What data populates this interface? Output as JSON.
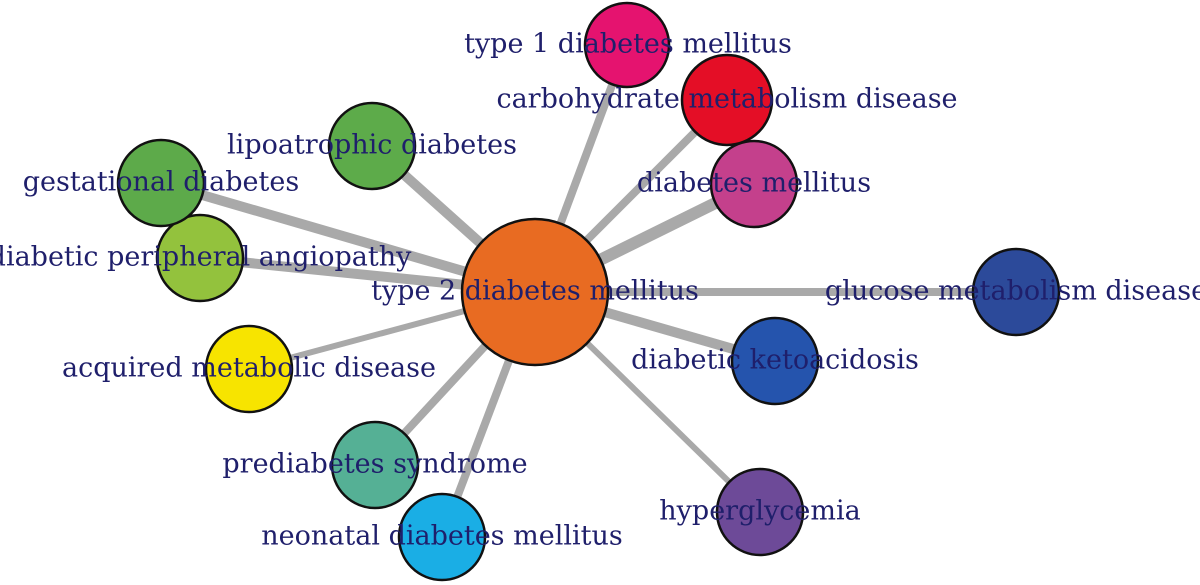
{
  "center": {
    "key": "t2dm",
    "label": "type 2 diabetes mellitus",
    "color": "#e86b22"
  },
  "nodes": [
    {
      "key": "t1dm",
      "label": "type 1 diabetes mellitus",
      "color": "#e5136f",
      "weight": 3
    },
    {
      "key": "carb",
      "label": "carbohydrate metabolism disease",
      "color": "#e40e26",
      "weight": 3
    },
    {
      "key": "dm",
      "label": "diabetes mellitus",
      "color": "#c4408c",
      "weight": 5
    },
    {
      "key": "glucose",
      "label": "glucose metabolism disease",
      "color": "#2c4a9a",
      "weight": 3
    },
    {
      "key": "dka",
      "label": "diabetic ketoacidosis",
      "color": "#2554ad",
      "weight": 4
    },
    {
      "key": "hyper",
      "label": "hyperglycemia",
      "color": "#6d4a98",
      "weight": 2
    },
    {
      "key": "neonatal",
      "label": "neonatal diabetes mellitus",
      "color": "#1aaee5",
      "weight": 3
    },
    {
      "key": "prediab",
      "label": "prediabetes syndrome",
      "color": "#55b095",
      "weight": 3
    },
    {
      "key": "acquired",
      "label": "acquired metabolic disease",
      "color": "#f7e400",
      "weight": 2
    },
    {
      "key": "periph",
      "label": "diabetic peripheral angiopathy",
      "color": "#93c23d",
      "weight": 4
    },
    {
      "key": "gest",
      "label": "gestational diabetes",
      "color": "#5daa4a",
      "weight": 4
    },
    {
      "key": "lipo",
      "label": "lipoatrophic diabetes",
      "color": "#5dab4a",
      "weight": 4
    }
  ]
}
